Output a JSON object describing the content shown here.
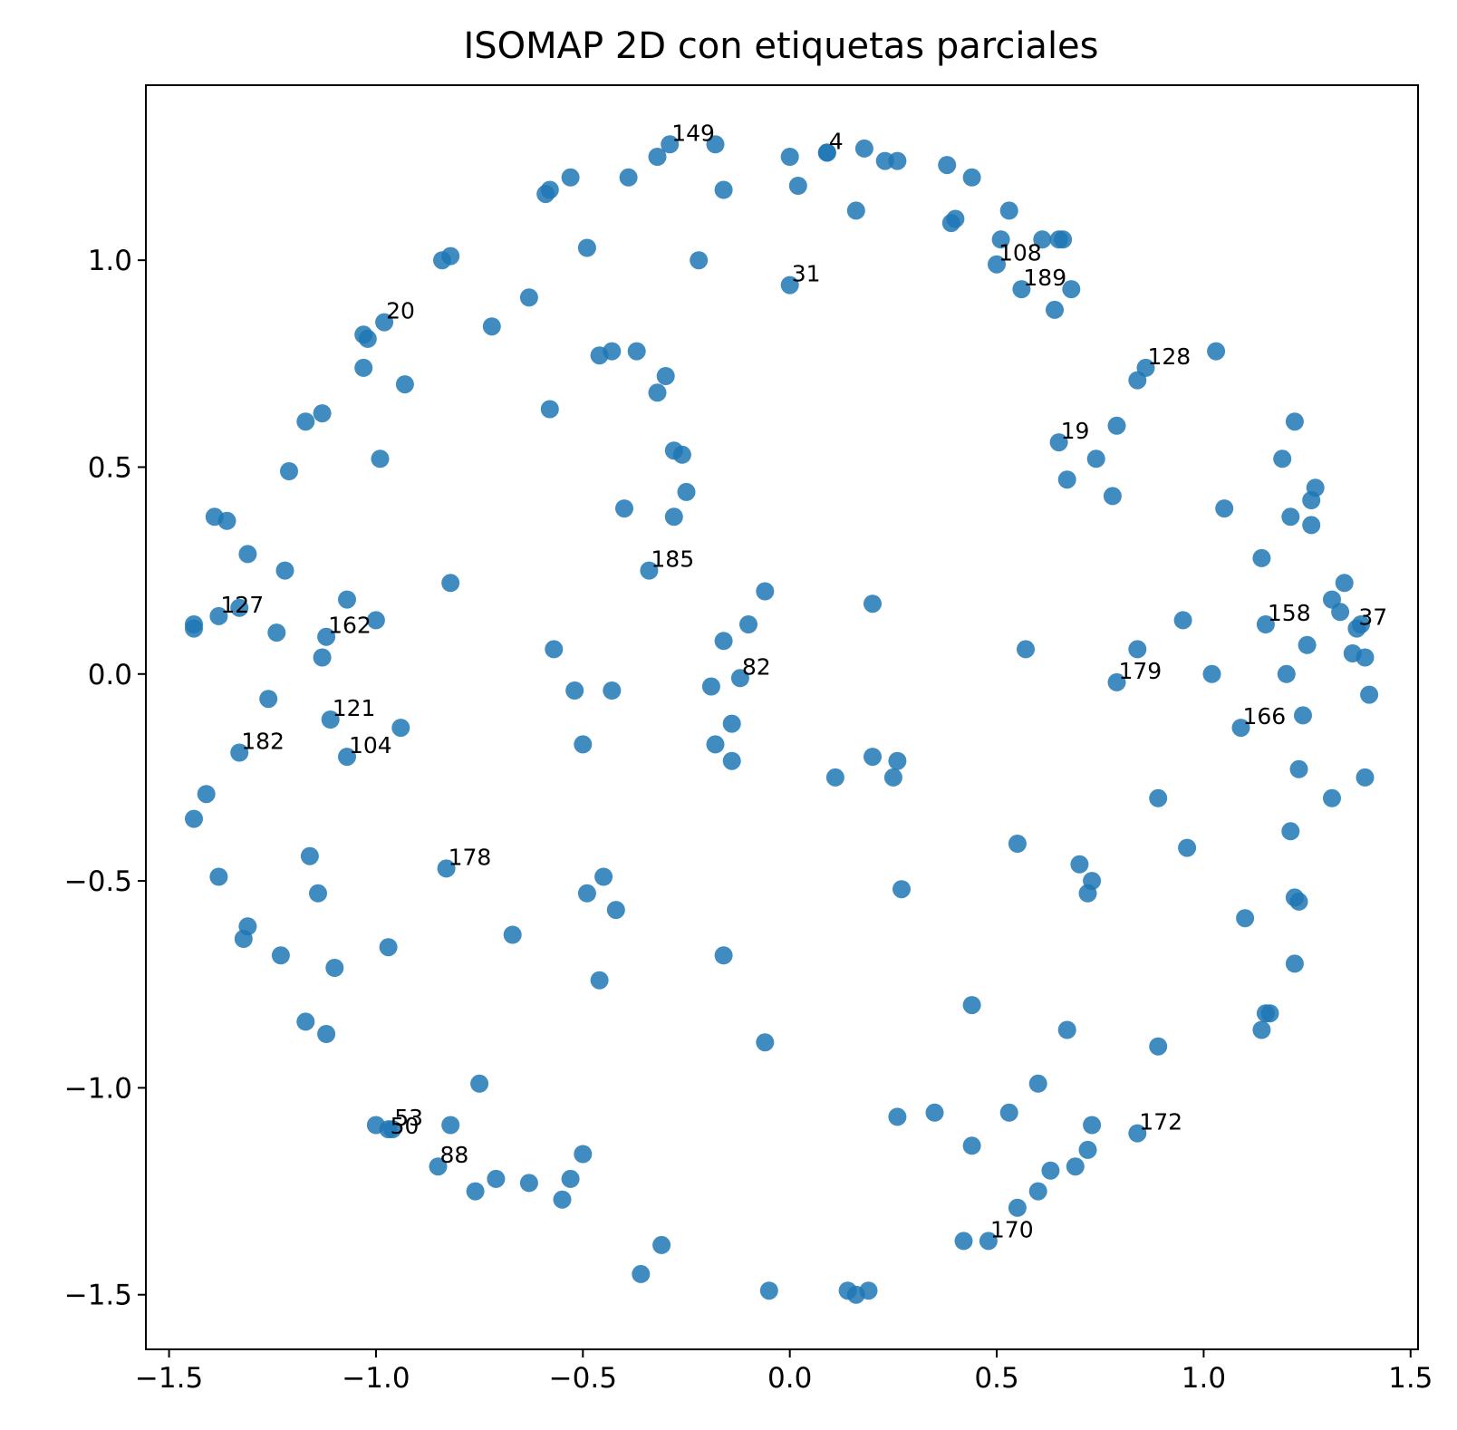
{
  "chart_data": {
    "type": "scatter",
    "title": "ISOMAP 2D con etiquetas parciales",
    "xlabel": "",
    "ylabel": "",
    "xlim": [
      -1.556,
      1.518
    ],
    "ylim": [
      -1.632,
      1.423
    ],
    "grid": false,
    "color": "#1f77b4",
    "xticks": [
      -1.5,
      -1.0,
      -0.5,
      0.0,
      0.5,
      1.0,
      1.5
    ],
    "xtick_labels": [
      "−1.5",
      "−1.0",
      "−0.5",
      "0.0",
      "0.5",
      "1.0",
      "1.5"
    ],
    "yticks": [
      -1.5,
      -1.0,
      -0.5,
      0.0,
      0.5,
      1.0
    ],
    "ytick_labels": [
      "−1.5",
      "−1.0",
      "−0.5",
      "0.0",
      "0.5",
      "1.0"
    ],
    "points": [
      [
        -0.29,
        1.28
      ],
      [
        -0.32,
        1.25
      ],
      [
        -0.18,
        1.28
      ],
      [
        -0.39,
        1.2
      ],
      [
        -0.53,
        1.2
      ],
      [
        -0.58,
        1.17
      ],
      [
        -0.59,
        1.16
      ],
      [
        -0.16,
        1.17
      ],
      [
        -0.49,
        1.03
      ],
      [
        -0.63,
        0.91
      ],
      [
        -0.22,
        1.0
      ],
      [
        -0.84,
        1.0
      ],
      [
        -0.82,
        1.01
      ],
      [
        -0.72,
        0.84
      ],
      [
        -0.98,
        0.85
      ],
      [
        -1.03,
        0.82
      ],
      [
        -1.02,
        0.81
      ],
      [
        -1.03,
        0.74
      ],
      [
        -0.93,
        0.7
      ],
      [
        -1.13,
        0.63
      ],
      [
        -1.17,
        0.61
      ],
      [
        -1.21,
        0.49
      ],
      [
        -0.99,
        0.52
      ],
      [
        -1.39,
        0.38
      ],
      [
        -1.36,
        0.37
      ],
      [
        -1.31,
        0.29
      ],
      [
        -1.22,
        0.25
      ],
      [
        -0.82,
        0.22
      ],
      [
        -1.33,
        0.16
      ],
      [
        -1.38,
        0.14
      ],
      [
        -1.44,
        0.12
      ],
      [
        -1.44,
        0.11
      ],
      [
        -1.07,
        0.18
      ],
      [
        -1.0,
        0.13
      ],
      [
        -1.12,
        0.09
      ],
      [
        -1.24,
        0.1
      ],
      [
        -1.13,
        0.04
      ],
      [
        -1.26,
        -0.06
      ],
      [
        -1.11,
        -0.11
      ],
      [
        -0.94,
        -0.13
      ],
      [
        -1.33,
        -0.19
      ],
      [
        -1.07,
        -0.2
      ],
      [
        -1.41,
        -0.29
      ],
      [
        -1.44,
        -0.35
      ],
      [
        -1.16,
        -0.44
      ],
      [
        -1.14,
        -0.53
      ],
      [
        -1.38,
        -0.49
      ],
      [
        -1.31,
        -0.61
      ],
      [
        -1.32,
        -0.64
      ],
      [
        -1.23,
        -0.68
      ],
      [
        -1.1,
        -0.71
      ],
      [
        -0.97,
        -0.66
      ],
      [
        -1.17,
        -0.84
      ],
      [
        -1.12,
        -0.87
      ],
      [
        -0.83,
        -0.47
      ],
      [
        -0.46,
        0.77
      ],
      [
        -0.43,
        0.78
      ],
      [
        -0.37,
        0.78
      ],
      [
        -0.3,
        0.72
      ],
      [
        -0.32,
        0.68
      ],
      [
        -0.58,
        0.64
      ],
      [
        -0.28,
        0.54
      ],
      [
        -0.26,
        0.53
      ],
      [
        -0.25,
        0.44
      ],
      [
        -0.4,
        0.4
      ],
      [
        -0.28,
        0.38
      ],
      [
        -0.34,
        0.25
      ],
      [
        -0.06,
        0.2
      ],
      [
        -0.1,
        0.12
      ],
      [
        -0.16,
        0.08
      ],
      [
        -0.12,
        -0.01
      ],
      [
        -0.19,
        -0.03
      ],
      [
        -0.14,
        -0.12
      ],
      [
        -0.18,
        -0.17
      ],
      [
        -0.14,
        -0.21
      ],
      [
        -0.57,
        0.06
      ],
      [
        -0.52,
        -0.04
      ],
      [
        -0.43,
        -0.04
      ],
      [
        -0.5,
        -0.17
      ],
      [
        -0.45,
        -0.49
      ],
      [
        -0.49,
        -0.53
      ],
      [
        -0.42,
        -0.57
      ],
      [
        -0.67,
        -0.63
      ],
      [
        -0.46,
        -0.74
      ],
      [
        -0.16,
        -0.68
      ],
      [
        -0.06,
        -0.89
      ],
      [
        -0.75,
        -0.99
      ],
      [
        -1.0,
        -1.09
      ],
      [
        -0.97,
        -1.1
      ],
      [
        -0.96,
        -1.1
      ],
      [
        -0.82,
        -1.09
      ],
      [
        -0.85,
        -1.19
      ],
      [
        -0.76,
        -1.25
      ],
      [
        -0.71,
        -1.22
      ],
      [
        -0.63,
        -1.23
      ],
      [
        -0.53,
        -1.22
      ],
      [
        -0.5,
        -1.16
      ],
      [
        -0.55,
        -1.27
      ],
      [
        -0.31,
        -1.38
      ],
      [
        -0.36,
        -1.45
      ],
      [
        -0.05,
        -1.49
      ],
      [
        0.14,
        -1.49
      ],
      [
        0.16,
        -1.5
      ],
      [
        0.19,
        -1.49
      ],
      [
        0.0,
        1.25
      ],
      [
        0.09,
        1.26
      ],
      [
        0.09,
        1.26
      ],
      [
        0.18,
        1.27
      ],
      [
        0.23,
        1.24
      ],
      [
        0.26,
        1.24
      ],
      [
        0.02,
        1.18
      ],
      [
        0.16,
        1.12
      ],
      [
        0.38,
        1.23
      ],
      [
        0.44,
        1.2
      ],
      [
        0.53,
        1.12
      ],
      [
        0.39,
        1.09
      ],
      [
        0.4,
        1.1
      ],
      [
        0.51,
        1.05
      ],
      [
        0.61,
        1.05
      ],
      [
        0.65,
        1.05
      ],
      [
        0.66,
        1.05
      ],
      [
        0.5,
        0.99
      ],
      [
        0.56,
        0.93
      ],
      [
        0.68,
        0.93
      ],
      [
        0.64,
        0.88
      ],
      [
        -0.0,
        0.94
      ],
      [
        1.03,
        0.78
      ],
      [
        0.84,
        0.71
      ],
      [
        0.86,
        0.74
      ],
      [
        1.22,
        0.61
      ],
      [
        0.79,
        0.6
      ],
      [
        0.65,
        0.56
      ],
      [
        0.74,
        0.52
      ],
      [
        0.67,
        0.47
      ],
      [
        0.78,
        0.43
      ],
      [
        1.19,
        0.52
      ],
      [
        1.27,
        0.45
      ],
      [
        1.26,
        0.42
      ],
      [
        1.05,
        0.4
      ],
      [
        1.21,
        0.38
      ],
      [
        1.26,
        0.36
      ],
      [
        1.14,
        0.28
      ],
      [
        1.34,
        0.22
      ],
      [
        1.31,
        0.18
      ],
      [
        1.33,
        0.15
      ],
      [
        1.15,
        0.12
      ],
      [
        1.38,
        0.12
      ],
      [
        1.37,
        0.11
      ],
      [
        0.95,
        0.13
      ],
      [
        1.25,
        0.07
      ],
      [
        1.36,
        0.05
      ],
      [
        1.39,
        0.04
      ],
      [
        1.02,
        0.0
      ],
      [
        1.2,
        0.0
      ],
      [
        0.84,
        0.06
      ],
      [
        0.79,
        -0.02
      ],
      [
        1.4,
        -0.05
      ],
      [
        1.09,
        -0.13
      ],
      [
        1.24,
        -0.1
      ],
      [
        1.23,
        -0.23
      ],
      [
        1.39,
        -0.25
      ],
      [
        1.31,
        -0.3
      ],
      [
        0.89,
        -0.3
      ],
      [
        0.57,
        0.06
      ],
      [
        0.2,
        0.17
      ],
      [
        0.11,
        -0.25
      ],
      [
        0.2,
        -0.2
      ],
      [
        0.26,
        -0.21
      ],
      [
        0.25,
        -0.25
      ],
      [
        0.27,
        -0.52
      ],
      [
        0.55,
        -0.41
      ],
      [
        0.7,
        -0.46
      ],
      [
        0.73,
        -0.5
      ],
      [
        0.72,
        -0.53
      ],
      [
        0.96,
        -0.42
      ],
      [
        1.21,
        -0.38
      ],
      [
        1.22,
        -0.54
      ],
      [
        1.23,
        -0.55
      ],
      [
        1.1,
        -0.59
      ],
      [
        1.22,
        -0.7
      ],
      [
        1.15,
        -0.82
      ],
      [
        1.16,
        -0.82
      ],
      [
        1.14,
        -0.86
      ],
      [
        0.89,
        -0.9
      ],
      [
        0.67,
        -0.86
      ],
      [
        0.44,
        -0.8
      ],
      [
        0.6,
        -0.99
      ],
      [
        0.26,
        -1.07
      ],
      [
        0.35,
        -1.06
      ],
      [
        0.53,
        -1.06
      ],
      [
        0.73,
        -1.09
      ],
      [
        0.84,
        -1.11
      ],
      [
        0.44,
        -1.14
      ],
      [
        0.72,
        -1.15
      ],
      [
        0.69,
        -1.19
      ],
      [
        0.63,
        -1.2
      ],
      [
        0.6,
        -1.25
      ],
      [
        0.55,
        -1.29
      ],
      [
        0.42,
        -1.37
      ],
      [
        0.48,
        -1.37
      ]
    ],
    "labels": [
      {
        "text": "149",
        "x": -0.29,
        "y": 1.28
      },
      {
        "text": "4",
        "x": 0.09,
        "y": 1.26
      },
      {
        "text": "108",
        "x": 0.5,
        "y": 0.99
      },
      {
        "text": "31",
        "x": -0.0,
        "y": 0.94
      },
      {
        "text": "189",
        "x": 0.56,
        "y": 0.93
      },
      {
        "text": "20",
        "x": -0.98,
        "y": 0.85
      },
      {
        "text": "128",
        "x": 0.86,
        "y": 0.74
      },
      {
        "text": "19",
        "x": 0.65,
        "y": 0.56
      },
      {
        "text": "185",
        "x": -0.34,
        "y": 0.25
      },
      {
        "text": "127",
        "x": -1.38,
        "y": 0.14
      },
      {
        "text": "162",
        "x": -1.12,
        "y": 0.09
      },
      {
        "text": "158",
        "x": 1.15,
        "y": 0.12
      },
      {
        "text": "37",
        "x": 1.37,
        "y": 0.11
      },
      {
        "text": "82",
        "x": -0.12,
        "y": -0.01
      },
      {
        "text": "179",
        "x": 0.79,
        "y": -0.02
      },
      {
        "text": "121",
        "x": -1.11,
        "y": -0.11
      },
      {
        "text": "166",
        "x": 1.09,
        "y": -0.13
      },
      {
        "text": "182",
        "x": -1.33,
        "y": -0.19
      },
      {
        "text": "104",
        "x": -1.07,
        "y": -0.2
      },
      {
        "text": "178",
        "x": -0.83,
        "y": -0.47
      },
      {
        "text": "53",
        "x": -0.96,
        "y": -1.1
      },
      {
        "text": "50",
        "x": -0.97,
        "y": -1.12
      },
      {
        "text": "88",
        "x": -0.85,
        "y": -1.19
      },
      {
        "text": "172",
        "x": 0.84,
        "y": -1.11
      },
      {
        "text": "170",
        "x": 0.48,
        "y": -1.37
      }
    ]
  }
}
